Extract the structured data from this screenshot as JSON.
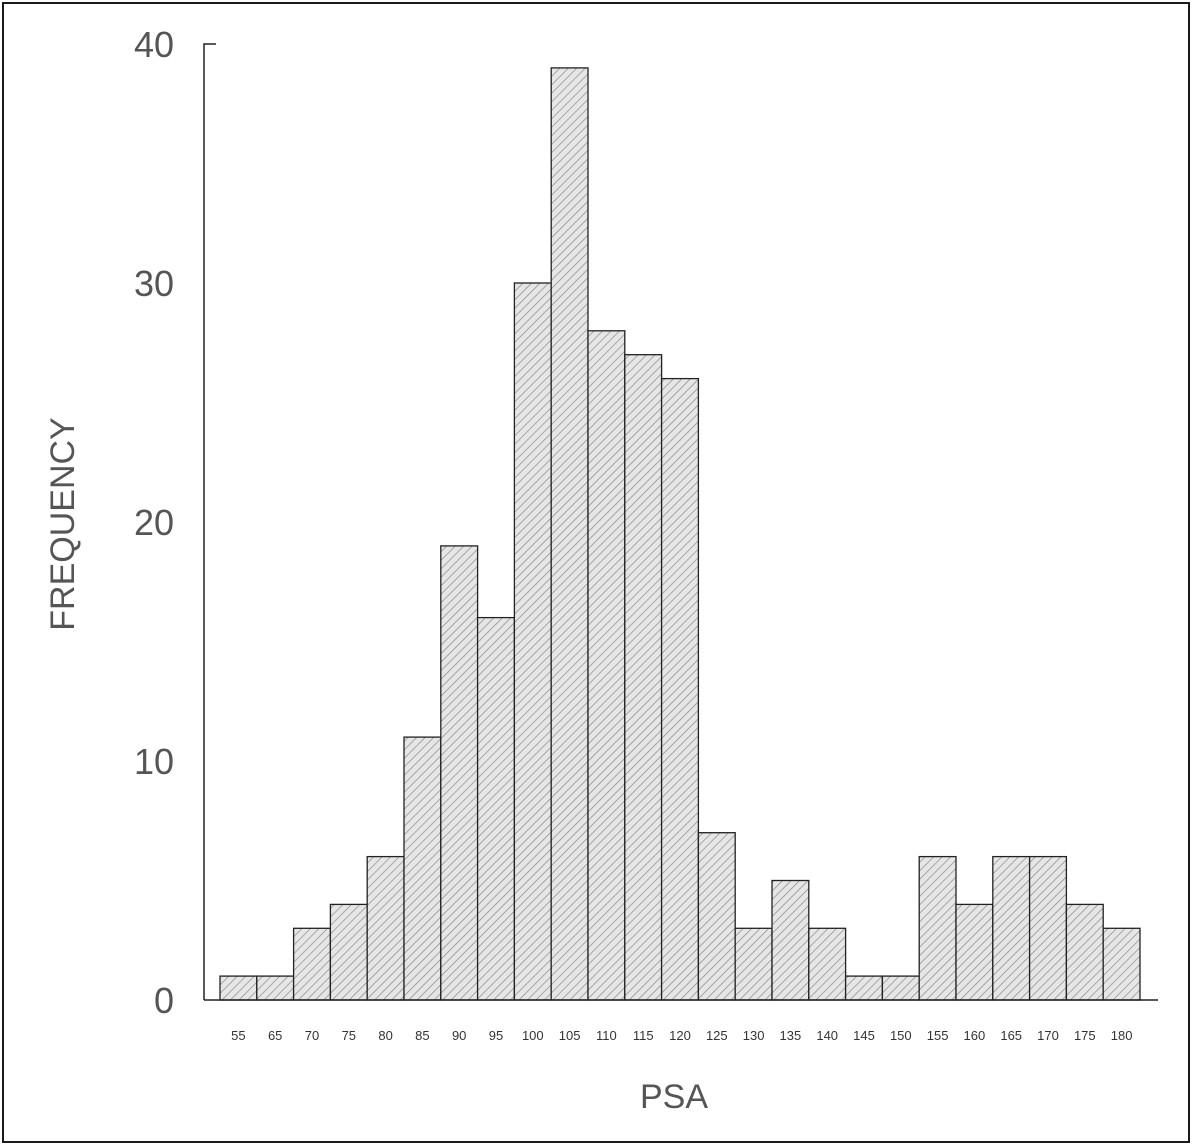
{
  "chart_data": {
    "type": "bar",
    "title": "",
    "xlabel": "PSA",
    "ylabel": "FREQUENCY",
    "categories": [
      "55",
      "65",
      "70",
      "75",
      "80",
      "85",
      "90",
      "95",
      "100",
      "105",
      "110",
      "115",
      "120",
      "125",
      "130",
      "135",
      "140",
      "145",
      "150",
      "155",
      "160",
      "165",
      "170",
      "175",
      "180"
    ],
    "values": [
      1,
      1,
      3,
      4,
      6,
      11,
      19,
      16,
      30,
      39,
      28,
      27,
      26,
      7,
      3,
      5,
      3,
      1,
      1,
      6,
      4,
      6,
      6,
      4,
      3
    ],
    "ylim": [
      0,
      40
    ],
    "yticks": [
      "0",
      "10",
      "20",
      "30",
      "40"
    ],
    "grid": false,
    "legend": "none",
    "bar_fill": "#e6e6e6",
    "bar_hatch_color": "#8a8a8a",
    "bar_stroke": "#222222"
  }
}
